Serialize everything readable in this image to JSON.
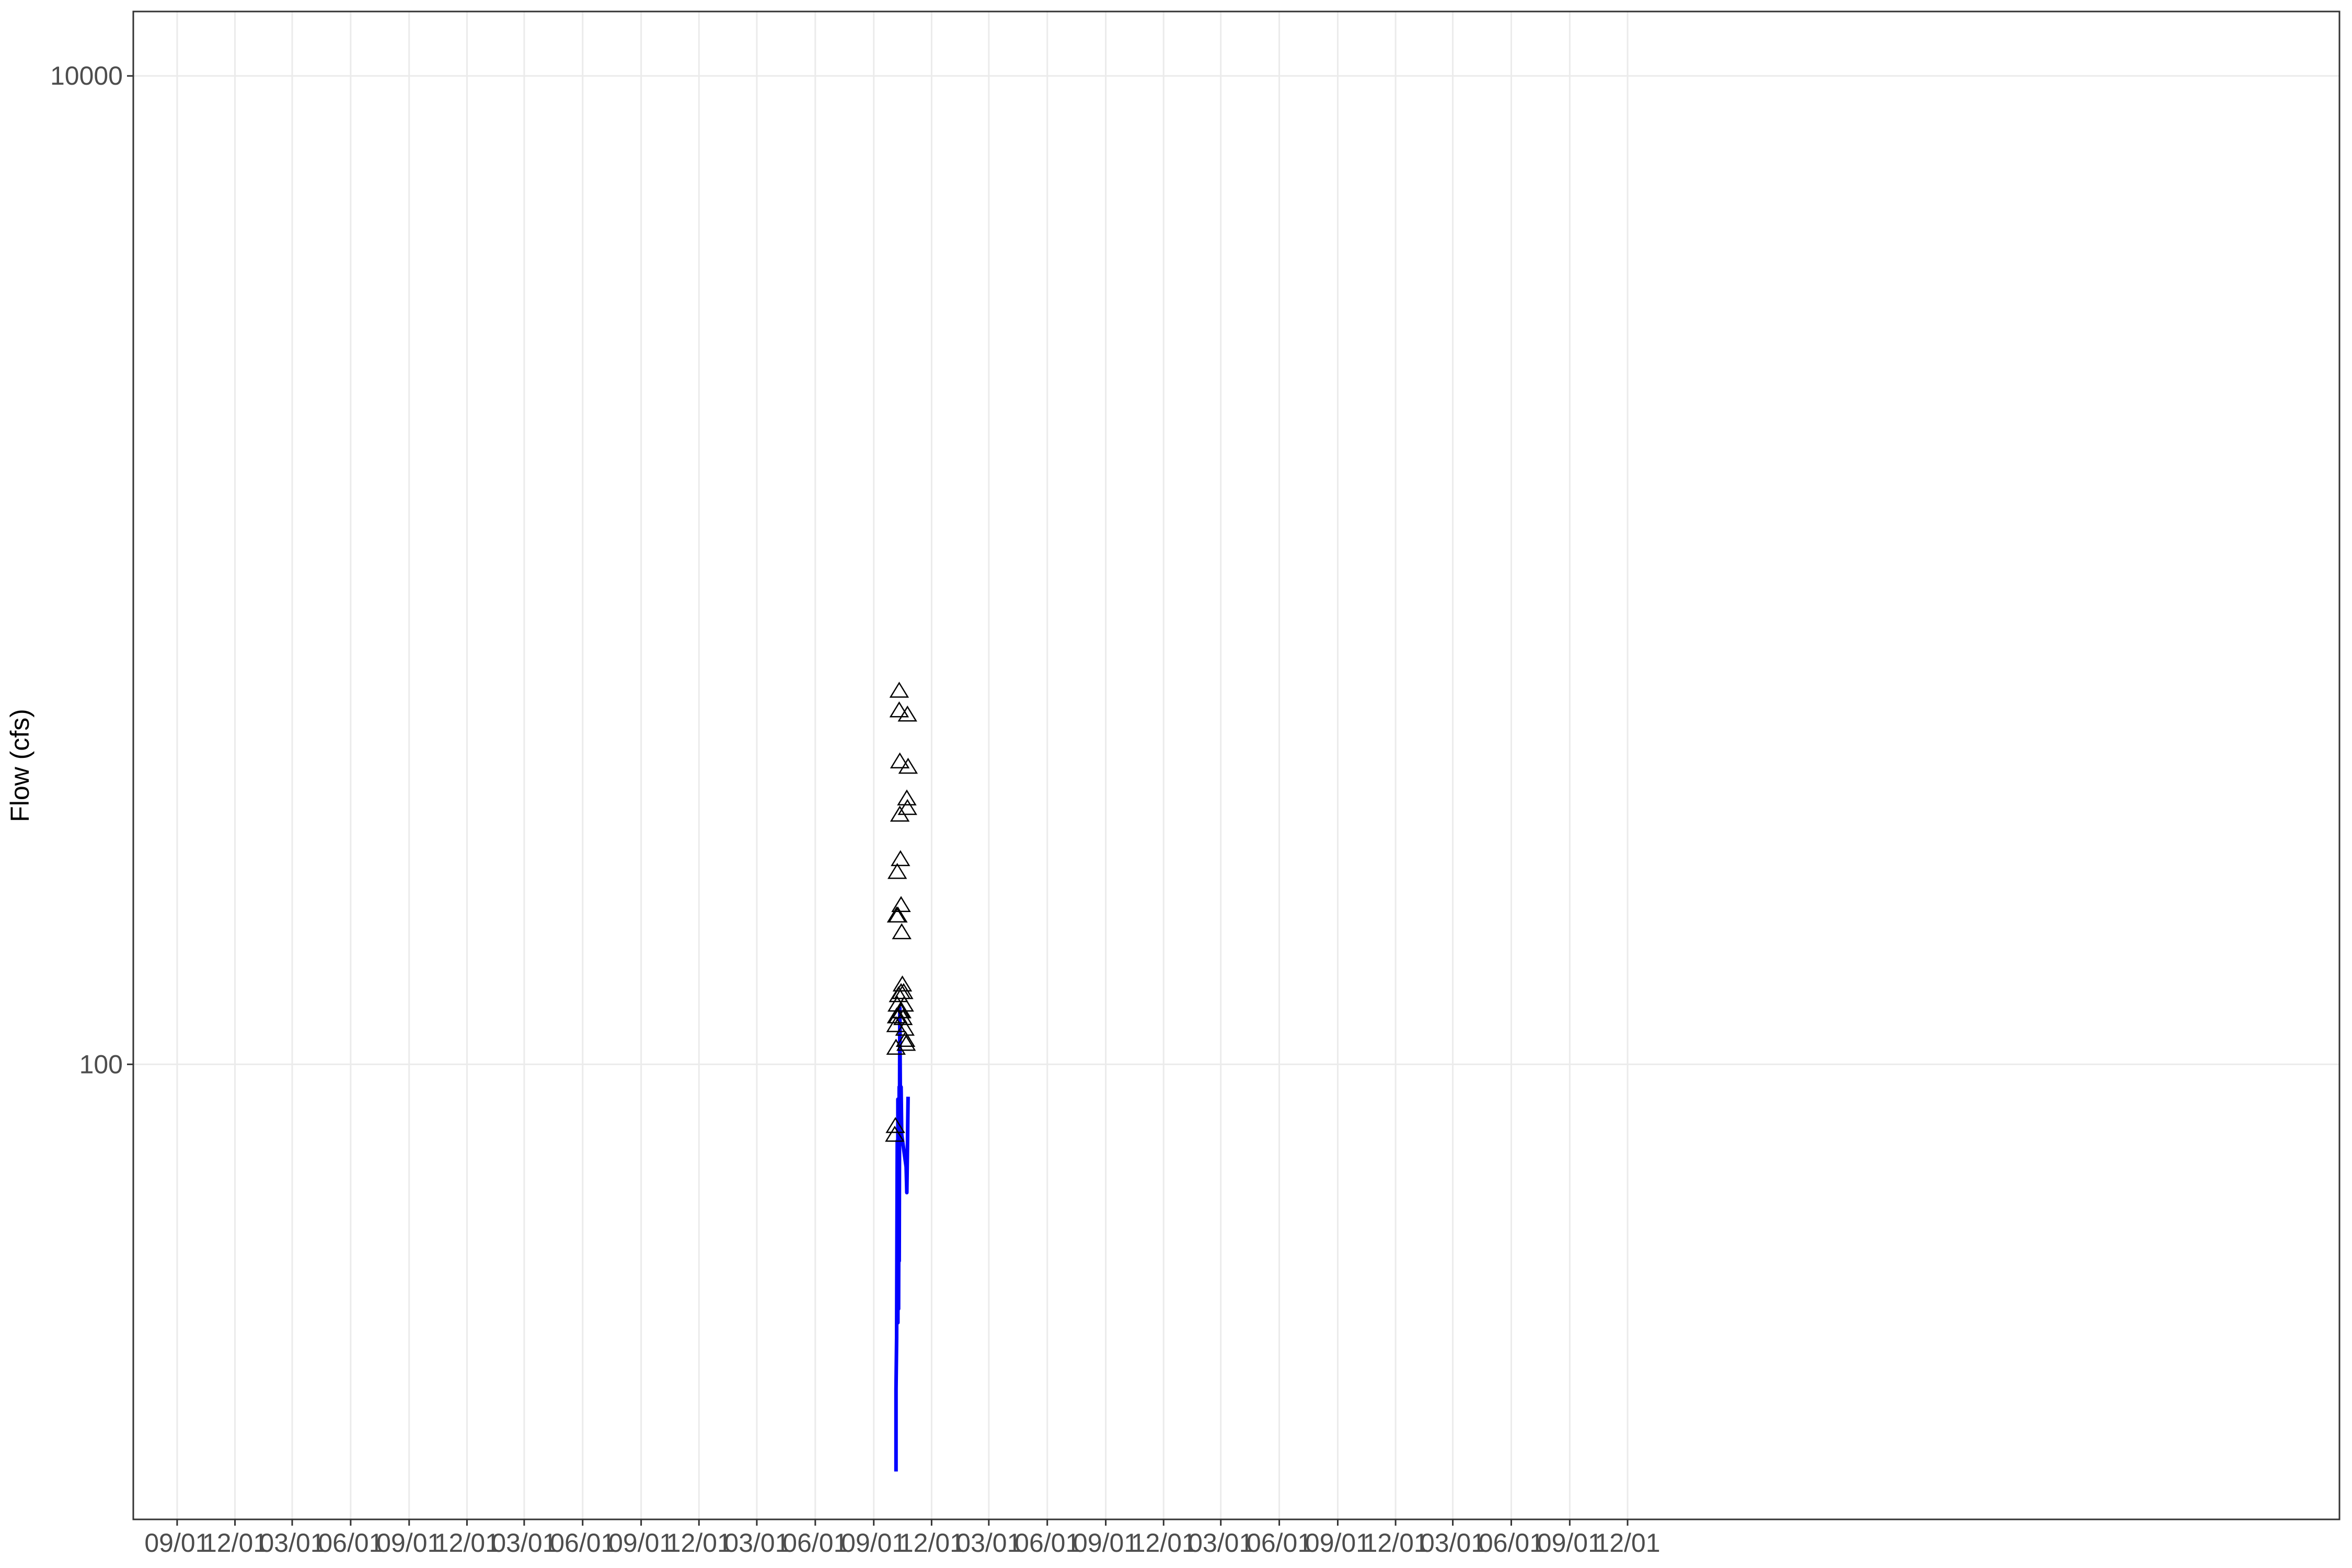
{
  "chart_data": {
    "type": "line",
    "xlabel": "",
    "ylabel": "Flow (cfs)",
    "y_scale": "log",
    "ylim": [
      12,
      13500
    ],
    "y_ticks": [
      {
        "value": 100,
        "label": "100"
      },
      {
        "value": 10000,
        "label": "10000"
      }
    ],
    "xlim": [
      "2013-06-24",
      "2022-12-25"
    ],
    "x_ticks": [
      {
        "date": "2013-09-01",
        "label": "09/01"
      },
      {
        "date": "2013-12-01",
        "label": "12/01"
      },
      {
        "date": "2014-03-01",
        "label": "03/01"
      },
      {
        "date": "2014-06-01",
        "label": "06/01"
      },
      {
        "date": "2014-09-01",
        "label": "09/01"
      },
      {
        "date": "2014-12-01",
        "label": "12/01"
      },
      {
        "date": "2015-03-01",
        "label": "03/01"
      },
      {
        "date": "2015-06-01",
        "label": "06/01"
      },
      {
        "date": "2015-09-01",
        "label": "09/01"
      },
      {
        "date": "2015-12-01",
        "label": "12/01"
      },
      {
        "date": "2016-03-01",
        "label": "03/01"
      },
      {
        "date": "2016-06-01",
        "label": "06/01"
      },
      {
        "date": "2016-09-01",
        "label": "09/01"
      },
      {
        "date": "2016-12-01",
        "label": "12/01"
      },
      {
        "date": "2017-03-01",
        "label": "03/01"
      },
      {
        "date": "2017-06-01",
        "label": "06/01"
      },
      {
        "date": "2017-09-01",
        "label": "09/01"
      },
      {
        "date": "2017-12-01",
        "label": "12/01"
      },
      {
        "date": "2018-03-01",
        "label": "03/01"
      },
      {
        "date": "2018-06-01",
        "label": "06/01"
      },
      {
        "date": "2018-09-01",
        "label": "09/01"
      },
      {
        "date": "2018-12-01",
        "label": "12/01"
      },
      {
        "date": "2019-03-01",
        "label": "03/01"
      },
      {
        "date": "2019-06-01",
        "label": "06/01"
      },
      {
        "date": "2019-09-01",
        "label": "09/01"
      },
      {
        "date": "2019-12-01",
        "label": "12/01"
      }
    ],
    "grid": true,
    "series": [
      {
        "mark": "line",
        "color": "#0000ff",
        "points": [
          {
            "x": "2016-10-06",
            "y": 15
          },
          {
            "x": "2016-10-06",
            "y": 22
          },
          {
            "x": "2016-10-07",
            "y": 28
          },
          {
            "x": "2016-10-08",
            "y": 70
          },
          {
            "x": "2016-10-09",
            "y": 30
          },
          {
            "x": "2016-10-09",
            "y": 85
          },
          {
            "x": "2016-10-10",
            "y": 32
          },
          {
            "x": "2016-10-11",
            "y": 90
          },
          {
            "x": "2016-10-11",
            "y": 40
          },
          {
            "x": "2016-10-12",
            "y": 130
          },
          {
            "x": "2016-10-13",
            "y": 78
          },
          {
            "x": "2016-10-14",
            "y": 90
          },
          {
            "x": "2016-10-15",
            "y": 72
          },
          {
            "x": "2016-10-22",
            "y": 62
          },
          {
            "x": "2016-10-23",
            "y": 55
          },
          {
            "x": "2016-10-24",
            "y": 68
          },
          {
            "x": "2016-10-25",
            "y": 86
          }
        ]
      },
      {
        "mark": "triangle",
        "color": "#000000",
        "points": [
          {
            "x": "2016-10-04",
            "y": 72
          },
          {
            "x": "2016-10-05",
            "y": 75
          },
          {
            "x": "2016-10-06",
            "y": 108
          },
          {
            "x": "2016-10-06",
            "y": 120
          },
          {
            "x": "2016-10-07",
            "y": 125
          },
          {
            "x": "2016-10-07",
            "y": 200
          },
          {
            "x": "2016-10-08",
            "y": 245
          },
          {
            "x": "2016-10-08",
            "y": 132
          },
          {
            "x": "2016-10-09",
            "y": 125
          },
          {
            "x": "2016-10-09",
            "y": 200
          },
          {
            "x": "2016-10-10",
            "y": 138
          },
          {
            "x": "2016-10-11",
            "y": 570
          },
          {
            "x": "2016-10-11",
            "y": 520
          },
          {
            "x": "2016-10-12",
            "y": 410
          },
          {
            "x": "2016-10-12",
            "y": 320
          },
          {
            "x": "2016-10-13",
            "y": 128
          },
          {
            "x": "2016-10-13",
            "y": 260
          },
          {
            "x": "2016-10-14",
            "y": 210
          },
          {
            "x": "2016-10-14",
            "y": 140
          },
          {
            "x": "2016-10-15",
            "y": 185
          },
          {
            "x": "2016-10-15",
            "y": 128
          },
          {
            "x": "2016-10-16",
            "y": 145
          },
          {
            "x": "2016-10-17",
            "y": 124
          },
          {
            "x": "2016-10-18",
            "y": 140
          },
          {
            "x": "2016-10-19",
            "y": 132
          },
          {
            "x": "2016-10-20",
            "y": 118
          },
          {
            "x": "2016-10-21",
            "y": 112
          },
          {
            "x": "2016-10-22",
            "y": 110
          },
          {
            "x": "2016-10-23",
            "y": 345
          },
          {
            "x": "2016-10-24",
            "y": 330
          },
          {
            "x": "2016-10-24",
            "y": 510
          },
          {
            "x": "2016-10-25",
            "y": 400
          }
        ]
      }
    ]
  }
}
